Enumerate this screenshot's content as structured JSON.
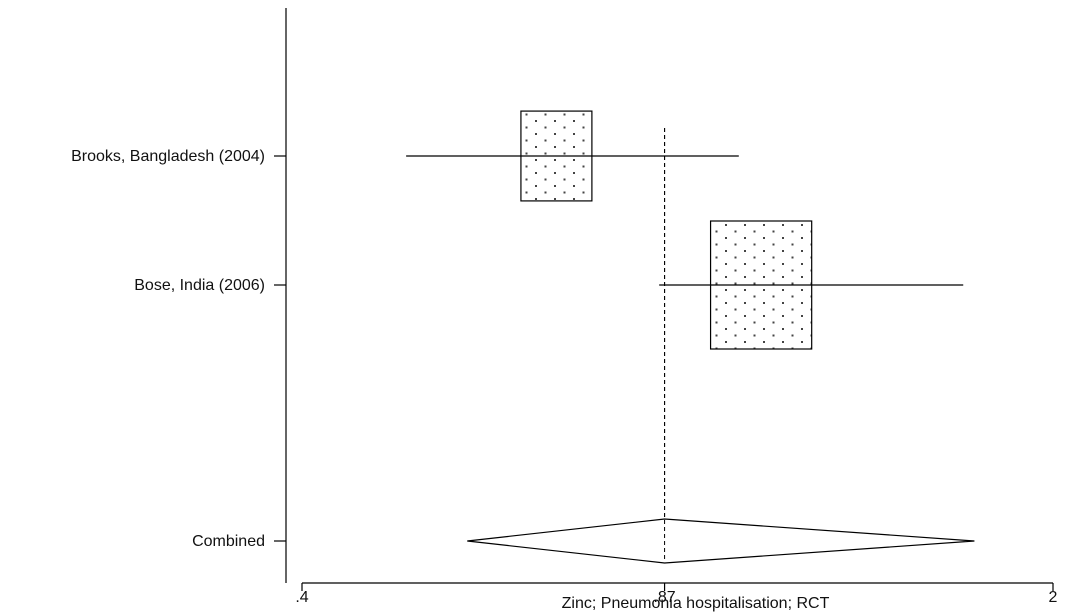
{
  "chart_data": {
    "type": "forest",
    "xlabel": "Zinc; Pneumonia hospitalisation; RCT",
    "x_scale": "log",
    "xlim": [
      0.4,
      2
    ],
    "x_ticks": [
      {
        "value": 0.4,
        "label": ".4"
      },
      {
        "value": 0.87,
        "label": ".87"
      },
      {
        "value": 2,
        "label": "2"
      }
    ],
    "reference_line": 0.87,
    "studies": [
      {
        "label": "Brooks, Bangladesh (2004)",
        "estimate": 0.69,
        "ci": [
          0.5,
          1.02
        ],
        "weight": 0.33
      },
      {
        "label": "Bose, India (2006)",
        "estimate": 1.07,
        "ci": [
          0.86,
          1.65
        ],
        "weight": 0.67
      }
    ],
    "pooled": {
      "label": "Combined",
      "estimate": 0.87,
      "ci": [
        0.57,
        1.69
      ]
    },
    "grid": false,
    "legend": "none"
  }
}
